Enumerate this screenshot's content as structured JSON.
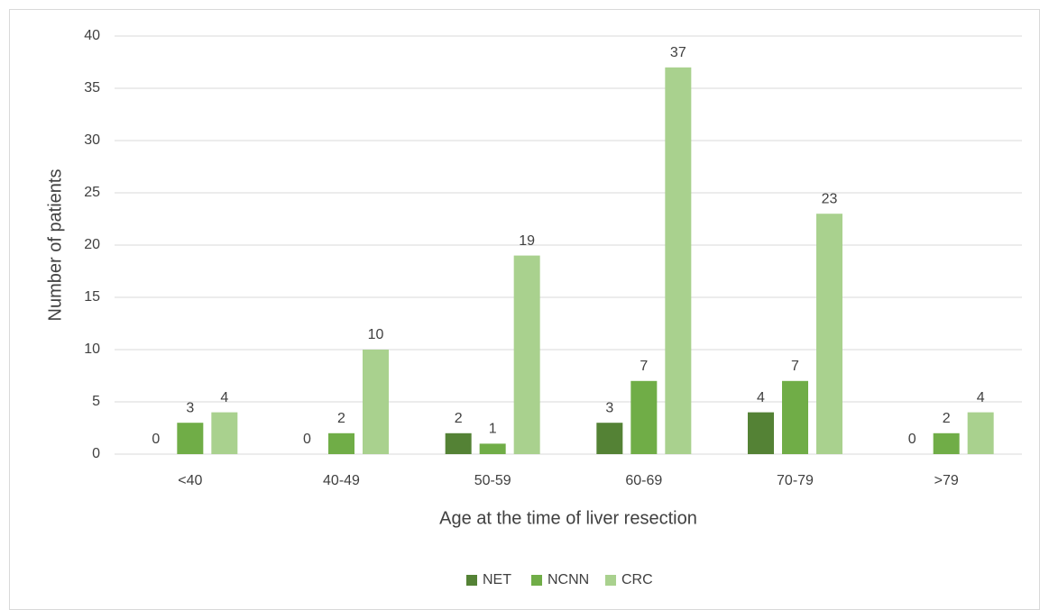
{
  "chart_data": {
    "type": "bar",
    "xlabel": "Age at the time of liver resection",
    "ylabel": "Number of patients",
    "categories": [
      "<40",
      "40-49",
      "50-59",
      "60-69",
      "70-79",
      ">79"
    ],
    "series": [
      {
        "name": "NET",
        "color": "#548235",
        "values": [
          0,
          0,
          2,
          3,
          4,
          0
        ]
      },
      {
        "name": "NCNN",
        "color": "#70ad47",
        "values": [
          3,
          2,
          1,
          7,
          7,
          2
        ]
      },
      {
        "name": "CRC",
        "color": "#a9d18e",
        "values": [
          4,
          10,
          19,
          37,
          23,
          4
        ]
      }
    ],
    "ylim": [
      0,
      40
    ],
    "yticks": [
      0,
      5,
      10,
      15,
      20,
      25,
      30,
      35,
      40
    ],
    "grid": true,
    "legend": "bottom"
  }
}
